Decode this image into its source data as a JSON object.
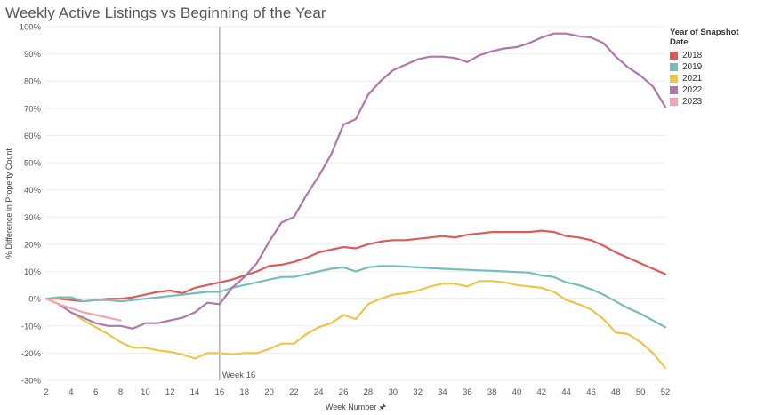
{
  "title": "Weekly Active Listings vs Beginning of the Year",
  "legend": {
    "title": "Year of Snapshot Date",
    "items": [
      {
        "label": "2018",
        "color": "#dc5b5b"
      },
      {
        "label": "2019",
        "color": "#79bdb8"
      },
      {
        "label": "2021",
        "color": "#ebc64d"
      },
      {
        "label": "2022",
        "color": "#ac79a9"
      },
      {
        "label": "2023",
        "color": "#f5a3b1"
      }
    ]
  },
  "chart_data": {
    "type": "line",
    "title": "Weekly Active Listings vs Beginning of the Year",
    "xlabel": "Week Number",
    "ylabel": "% Difference in Property Count",
    "xlim": [
      2,
      52
    ],
    "ylim": [
      -30,
      100
    ],
    "x_ticks": [
      2,
      4,
      6,
      8,
      10,
      12,
      14,
      16,
      18,
      20,
      22,
      24,
      26,
      28,
      30,
      32,
      34,
      36,
      38,
      40,
      42,
      44,
      46,
      48,
      50,
      52
    ],
    "y_ticks": [
      -30,
      -20,
      -10,
      0,
      10,
      20,
      30,
      40,
      50,
      60,
      70,
      80,
      90,
      100
    ],
    "y_tick_labels": [
      "-30%",
      "-20%",
      "-10%",
      "0%",
      "10%",
      "20%",
      "30%",
      "40%",
      "50%",
      "60%",
      "70%",
      "80%",
      "90%",
      "100%"
    ],
    "grid": true,
    "legend_position": "top-right",
    "reference_line": {
      "x": 16,
      "label": "Week 16"
    },
    "series": [
      {
        "name": "2018",
        "color": "#dc5b5b",
        "x": [
          2,
          3,
          4,
          5,
          6,
          7,
          8,
          9,
          10,
          11,
          12,
          13,
          14,
          15,
          16,
          17,
          18,
          19,
          20,
          21,
          22,
          23,
          24,
          25,
          26,
          27,
          28,
          29,
          30,
          31,
          32,
          33,
          34,
          35,
          36,
          37,
          38,
          39,
          40,
          41,
          42,
          43,
          44,
          45,
          46,
          47,
          48,
          49,
          50,
          51,
          52
        ],
        "values": [
          0,
          0,
          -0.5,
          -1,
          -0.5,
          0,
          0,
          0.5,
          1.5,
          2.5,
          3,
          2,
          4,
          5,
          6,
          7,
          8.5,
          10,
          12,
          12.5,
          13.5,
          15,
          17,
          18,
          19,
          18.5,
          20,
          21,
          21.5,
          21.5,
          22,
          22.5,
          23,
          22.5,
          23.5,
          24,
          24.5,
          24.5,
          24.5,
          24.5,
          25,
          24.5,
          23,
          22.5,
          21.5,
          19.5,
          17,
          15,
          13,
          11,
          9
        ]
      },
      {
        "name": "2019",
        "color": "#79bdb8",
        "x": [
          2,
          3,
          4,
          5,
          6,
          7,
          8,
          9,
          10,
          11,
          12,
          13,
          14,
          15,
          16,
          17,
          18,
          19,
          20,
          21,
          22,
          23,
          24,
          25,
          26,
          27,
          28,
          29,
          30,
          31,
          32,
          33,
          34,
          35,
          36,
          37,
          38,
          39,
          40,
          41,
          42,
          43,
          44,
          45,
          46,
          47,
          48,
          49,
          50,
          51,
          52
        ],
        "values": [
          0,
          0.5,
          0.5,
          -1,
          -0.5,
          -0.5,
          -1,
          -0.5,
          0,
          0.5,
          1,
          1.5,
          2,
          2.5,
          2.5,
          4,
          5,
          6,
          7,
          8,
          8,
          9,
          10,
          11,
          11.5,
          10,
          11.5,
          12,
          12,
          11.8,
          11.5,
          11.3,
          11,
          10.8,
          10.6,
          10.4,
          10.2,
          10,
          9.8,
          9.6,
          8.5,
          8,
          6,
          5,
          3.5,
          1.5,
          -1,
          -3.5,
          -5.5,
          -8,
          -10.5
        ]
      },
      {
        "name": "2021",
        "color": "#ebc64d",
        "x": [
          2,
          3,
          4,
          5,
          6,
          7,
          8,
          9,
          10,
          11,
          12,
          13,
          14,
          15,
          16,
          17,
          18,
          19,
          20,
          21,
          22,
          23,
          24,
          25,
          26,
          27,
          28,
          29,
          30,
          31,
          32,
          33,
          34,
          35,
          36,
          37,
          38,
          39,
          40,
          41,
          42,
          43,
          44,
          45,
          46,
          47,
          48,
          49,
          50,
          51,
          52
        ],
        "values": [
          0,
          -2,
          -5,
          -8,
          -10.5,
          -13,
          -16,
          -18,
          -18,
          -19,
          -19.5,
          -20.5,
          -22,
          -20,
          -20,
          -20.5,
          -20,
          -20,
          -18.5,
          -16.5,
          -16.5,
          -13,
          -10.5,
          -9,
          -6,
          -7.5,
          -2,
          0,
          1.5,
          2,
          3,
          4.5,
          5.5,
          5.5,
          4.5,
          6.5,
          6.5,
          6,
          5,
          4.5,
          4,
          2.5,
          -0.5,
          -2,
          -4,
          -7.5,
          -12.5,
          -13,
          -16,
          -20,
          -25.5
        ]
      },
      {
        "name": "2022",
        "color": "#ac79a9",
        "x": [
          2,
          3,
          4,
          5,
          6,
          7,
          8,
          9,
          10,
          11,
          12,
          13,
          14,
          15,
          16,
          17,
          18,
          19,
          20,
          21,
          22,
          23,
          24,
          25,
          26,
          27,
          28,
          29,
          30,
          31,
          32,
          33,
          34,
          35,
          36,
          37,
          38,
          39,
          40,
          41,
          42,
          43,
          44,
          45,
          46,
          47,
          48,
          49,
          50,
          51,
          52
        ],
        "values": [
          0,
          -2,
          -5,
          -7,
          -9,
          -10,
          -10,
          -11,
          -9,
          -9,
          -8,
          -7,
          -5,
          -1.5,
          -2,
          4,
          8,
          13,
          21,
          28,
          30,
          38,
          45,
          53,
          64,
          66,
          75,
          80,
          84,
          86,
          88,
          89,
          89,
          88.5,
          87,
          89.5,
          91,
          92,
          92.5,
          94,
          96,
          97.5,
          97.5,
          96.5,
          96,
          94,
          89,
          85,
          82,
          78,
          70.5
        ]
      },
      {
        "name": "2023",
        "color": "#f5a3b1",
        "x": [
          2,
          3,
          4,
          5,
          6,
          7,
          8
        ],
        "values": [
          0,
          -2,
          -3.5,
          -5,
          -6,
          -7,
          -8
        ]
      }
    ]
  }
}
